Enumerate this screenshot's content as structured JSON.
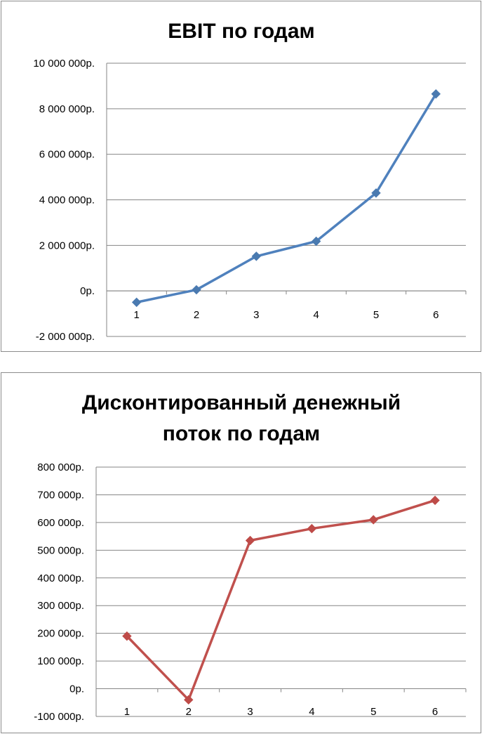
{
  "charts": [
    {
      "title_lines": [
        "EBIT по годам"
      ],
      "chart_data": {
        "type": "line",
        "title": "EBIT по годам",
        "categories": [
          "1",
          "2",
          "3",
          "4",
          "5",
          "6"
        ],
        "series": [
          {
            "values": [
              -500000,
              50000,
              1520000,
              2180000,
              4300000,
              8650000
            ]
          }
        ],
        "ylim": [
          -2000000,
          10000000
        ],
        "ytick_values": [
          -2000000,
          0,
          2000000,
          4000000,
          6000000,
          8000000,
          10000000
        ],
        "ytick_labels": [
          "-2 000 000р.",
          "0р.",
          "2 000 000р.",
          "4 000 000р.",
          "6 000 000р.",
          "8 000 000р.",
          "10 000 000р."
        ],
        "grid": true,
        "colors": {
          "line": "#4f81bd",
          "marker": "#4a7ab0",
          "grid": "#868686",
          "negative_label": "#ff0000"
        }
      }
    },
    {
      "title_lines": [
        "Дисконтированный денежный",
        "поток по годам"
      ],
      "chart_data": {
        "type": "line",
        "title": "Дисконтированный денежный поток по годам",
        "categories": [
          "1",
          "2",
          "3",
          "4",
          "5",
          "6"
        ],
        "series": [
          {
            "values": [
              190000,
              -40000,
              535000,
              578000,
              610000,
              680000
            ]
          }
        ],
        "ylim": [
          -100000,
          800000
        ],
        "ytick_values": [
          -100000,
          0,
          100000,
          200000,
          300000,
          400000,
          500000,
          600000,
          700000,
          800000
        ],
        "ytick_labels": [
          "-100 000р.",
          "0р.",
          "100 000р.",
          "200 000р.",
          "300 000р.",
          "400 000р.",
          "500 000р.",
          "600 000р.",
          "700 000р.",
          "800 000р."
        ],
        "grid": true,
        "colors": {
          "line": "#c0504d",
          "marker": "#be4b48",
          "grid": "#868686",
          "negative_label": "#000000"
        }
      }
    }
  ]
}
